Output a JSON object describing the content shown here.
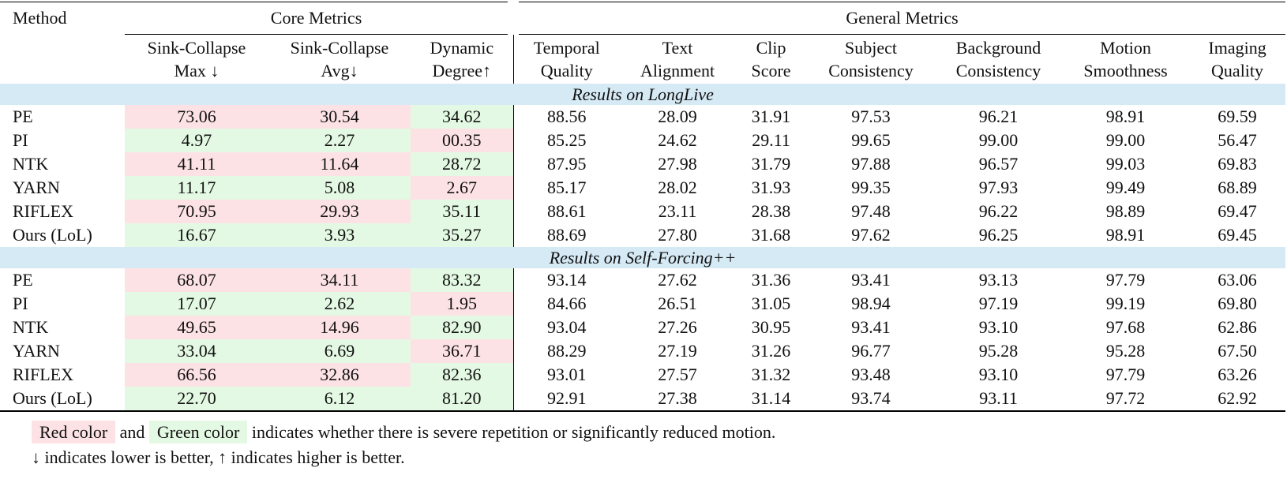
{
  "header": {
    "method": "Method",
    "groups": [
      "Core Metrics",
      "General Metrics"
    ],
    "columns": [
      [
        "Sink-Collapse",
        "Max ↓"
      ],
      [
        "Sink-Collapse",
        "Avg↓"
      ],
      [
        "Dynamic",
        "Degree↑"
      ],
      [
        "Temporal",
        "Quality"
      ],
      [
        "Text",
        "Alignment"
      ],
      [
        "Clip",
        "Score"
      ],
      [
        "Subject",
        "Consistency"
      ],
      [
        "Background",
        "Consistency"
      ],
      [
        "Motion",
        "Smoothness"
      ],
      [
        "Imaging",
        "Quality"
      ]
    ]
  },
  "colors": {
    "red": "#fde2e5",
    "green": "#e4f9e4",
    "section": "#d6eaf5"
  },
  "sections": [
    {
      "title": "Results on LongLive",
      "rows": [
        {
          "method": "PE",
          "values": [
            "73.06",
            "30.54",
            "34.62",
            "88.56",
            "28.09",
            "31.91",
            "97.53",
            "96.21",
            "98.91",
            "69.59"
          ],
          "highlight": [
            "red",
            "red",
            "green"
          ]
        },
        {
          "method": "PI",
          "values": [
            "4.97",
            "2.27",
            "00.35",
            "85.25",
            "24.62",
            "29.11",
            "99.65",
            "99.00",
            "99.00",
            "56.47"
          ],
          "highlight": [
            "green",
            "green",
            "red"
          ]
        },
        {
          "method": "NTK",
          "values": [
            "41.11",
            "11.64",
            "28.72",
            "87.95",
            "27.98",
            "31.79",
            "97.88",
            "96.57",
            "99.03",
            "69.83"
          ],
          "highlight": [
            "red",
            "red",
            "green"
          ]
        },
        {
          "method": "YARN",
          "values": [
            "11.17",
            "5.08",
            "2.67",
            "85.17",
            "28.02",
            "31.93",
            "99.35",
            "97.93",
            "99.49",
            "68.89"
          ],
          "highlight": [
            "green",
            "green",
            "red"
          ]
        },
        {
          "method": "RIFLEX",
          "values": [
            "70.95",
            "29.93",
            "35.11",
            "88.61",
            "23.11",
            "28.38",
            "97.48",
            "96.22",
            "98.89",
            "69.47"
          ],
          "highlight": [
            "red",
            "red",
            "green"
          ]
        },
        {
          "method": "Ours (LoL)",
          "values": [
            "16.67",
            "3.93",
            "35.27",
            "88.69",
            "27.80",
            "31.68",
            "97.62",
            "96.25",
            "98.91",
            "69.45"
          ],
          "highlight": [
            "green",
            "green",
            "green"
          ]
        }
      ]
    },
    {
      "title": "Results on Self-Forcing++",
      "rows": [
        {
          "method": "PE",
          "values": [
            "68.07",
            "34.11",
            "83.32",
            "93.14",
            "27.62",
            "31.36",
            "93.41",
            "93.13",
            "97.79",
            "63.06"
          ],
          "highlight": [
            "red",
            "red",
            "green"
          ]
        },
        {
          "method": "PI",
          "values": [
            "17.07",
            "2.62",
            "1.95",
            "84.66",
            "26.51",
            "31.05",
            "98.94",
            "97.19",
            "99.19",
            "69.80"
          ],
          "highlight": [
            "green",
            "green",
            "red"
          ]
        },
        {
          "method": "NTK",
          "values": [
            "49.65",
            "14.96",
            "82.90",
            "93.04",
            "27.26",
            "30.95",
            "93.41",
            "93.10",
            "97.68",
            "62.86"
          ],
          "highlight": [
            "red",
            "red",
            "green"
          ]
        },
        {
          "method": "YARN",
          "values": [
            "33.04",
            "6.69",
            "36.71",
            "88.29",
            "27.19",
            "31.26",
            "96.77",
            "95.28",
            "95.28",
            "67.50"
          ],
          "highlight": [
            "green",
            "green",
            "red"
          ]
        },
        {
          "method": "RIFLEX",
          "values": [
            "66.56",
            "32.86",
            "82.36",
            "93.01",
            "27.57",
            "31.32",
            "93.48",
            "93.10",
            "97.79",
            "63.26"
          ],
          "highlight": [
            "red",
            "red",
            "green"
          ]
        },
        {
          "method": "Ours (LoL)",
          "values": [
            "22.70",
            "6.12",
            "81.20",
            "92.91",
            "27.38",
            "31.14",
            "93.74",
            "93.11",
            "97.72",
            "62.92"
          ],
          "highlight": [
            "green",
            "green",
            "green"
          ]
        }
      ]
    }
  ],
  "footer": {
    "red_label": "Red color",
    "and": "and",
    "green_label": "Green color",
    "legend_text": "indicates whether there is severe repetition or significantly reduced motion.",
    "note": "↓ indicates lower is better, ↑ indicates higher is better."
  }
}
